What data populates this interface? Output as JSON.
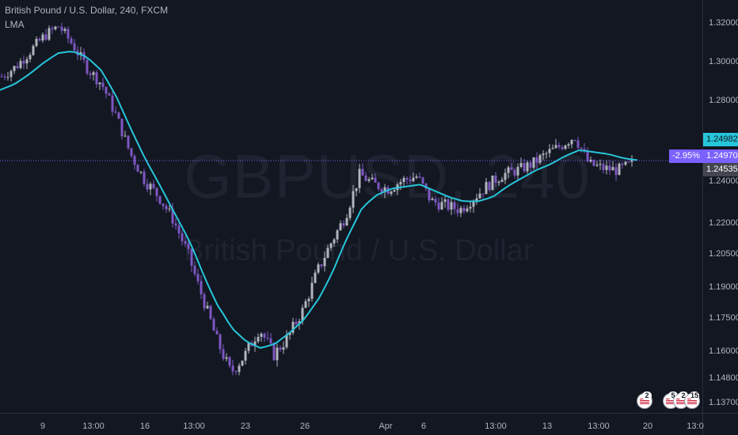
{
  "legend": {
    "title": "British Pound / U.S. Dollar, 240, FXCM",
    "indicator": "LMA"
  },
  "watermark": {
    "symbol": "GBPUSD, 240",
    "description": "British Pound / U.S. Dollar"
  },
  "price_labels": {
    "percent_change": "-2.95%",
    "current": "1.24970",
    "upper": "1.24982",
    "lower": "1.24535"
  },
  "events": [
    {
      "count": "2"
    },
    {
      "count": "5"
    },
    {
      "count": "2"
    },
    {
      "count": "15"
    }
  ],
  "colors": {
    "background": "#131722",
    "up_candle": "#b2b5be",
    "down_candle": "#7e57c2",
    "lma_line": "#26c6da",
    "current_price": "#7b61ff",
    "upper_tag": "#26c6da",
    "lower_tag": "#434651",
    "axis_text": "#b2b5be"
  },
  "chart_data": {
    "type": "line",
    "title": "British Pound / U.S. Dollar, 240, FXCM",
    "chart_style": "candlestick",
    "ylim": [
      1.132,
      1.328
    ],
    "grid": false,
    "y_ticks": [
      "1.32000",
      "1.30000",
      "1.28000",
      "1.24000",
      "1.22000",
      "1.20500",
      "1.19000",
      "1.17500",
      "1.16000",
      "1.14800",
      "1.13700"
    ],
    "x_ticks": [
      "9",
      "13:00",
      "16",
      "13:00",
      "23",
      "26",
      "Apr",
      "6",
      "13:00",
      "13",
      "13:00",
      "20",
      "13:0"
    ],
    "series": [
      {
        "name": "LMA",
        "values": [
          1.285,
          1.288,
          1.293,
          1.299,
          1.304,
          1.305,
          1.302,
          1.295,
          1.282,
          1.266,
          1.251,
          1.238,
          1.225,
          1.212,
          1.196,
          1.181,
          1.17,
          1.164,
          1.161,
          1.163,
          1.168,
          1.174,
          1.184,
          1.197,
          1.213,
          1.227,
          1.233,
          1.236,
          1.237,
          1.238,
          1.235,
          1.232,
          1.23,
          1.23,
          1.232,
          1.237,
          1.241,
          1.245,
          1.248,
          1.252,
          1.255,
          1.254,
          1.253,
          1.251,
          1.25
        ]
      },
      {
        "name": "GBPUSD close",
        "values": [
          1.292,
          1.297,
          1.305,
          1.313,
          1.318,
          1.308,
          1.296,
          1.288,
          1.272,
          1.253,
          1.24,
          1.232,
          1.221,
          1.205,
          1.185,
          1.165,
          1.15,
          1.158,
          1.17,
          1.158,
          1.166,
          1.178,
          1.196,
          1.21,
          1.223,
          1.243,
          1.238,
          1.236,
          1.24,
          1.242,
          1.23,
          1.228,
          1.226,
          1.232,
          1.238,
          1.243,
          1.245,
          1.248,
          1.253,
          1.257,
          1.262,
          1.248,
          1.246,
          1.245,
          1.248
        ]
      }
    ],
    "current_price": 1.2497,
    "percent_change": "-2.95%"
  }
}
